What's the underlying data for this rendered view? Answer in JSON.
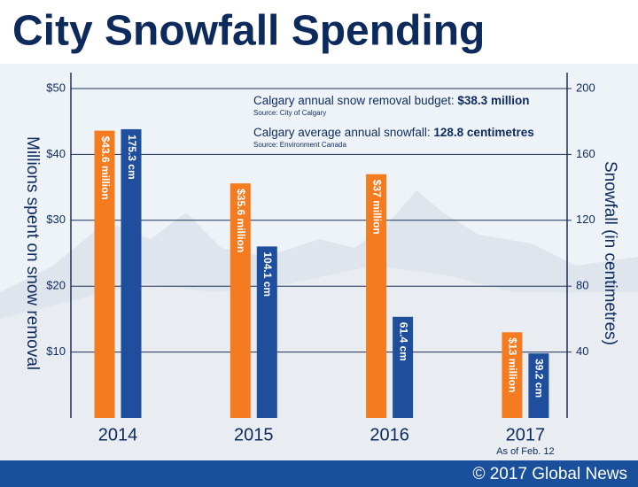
{
  "chart_data": {
    "type": "bar",
    "title": "City Snowfall Spending",
    "y_label": "Millions spent on snow removal",
    "y2_label": "Snowfall (in centimetres)",
    "categories": [
      "2014",
      "2015",
      "2016",
      "2017"
    ],
    "category_notes": [
      null,
      null,
      null,
      "As of Feb. 12"
    ],
    "series": [
      {
        "color": "#f47b20",
        "axis": "y",
        "values": [
          43.6,
          35.6,
          37,
          13
        ],
        "value_labels": [
          "$43.6 million",
          "$35.6 million",
          "$37 million",
          "$13 million"
        ]
      },
      {
        "color": "#1f4e9c",
        "axis": "y2",
        "values": [
          175.3,
          104.1,
          61.4,
          39.2
        ],
        "value_labels": [
          "175.3 cm",
          "104.1 cm",
          "61.4 cm",
          "39.2 cm"
        ]
      }
    ],
    "ylim": [
      0,
      50
    ],
    "yticks": [
      {
        "value": 10,
        "label": "$10"
      },
      {
        "value": 20,
        "label": "$20"
      },
      {
        "value": 30,
        "label": "$30"
      },
      {
        "value": 40,
        "label": "$40"
      },
      {
        "value": 50,
        "label": "$50"
      }
    ],
    "y2lim": [
      0,
      200
    ],
    "y2ticks": [
      40,
      80,
      120,
      160,
      200
    ],
    "grid": true,
    "annotations": [
      {
        "text": "Calgary annual snow removal budget:",
        "value": "$38.3 million",
        "source": "Source: City of Calgary"
      },
      {
        "text": "Calgary average annual snowfall:",
        "value": "128.8 centimetres",
        "source": "Source: Environment Canada"
      }
    ],
    "credit": "© 2017 Global News"
  }
}
